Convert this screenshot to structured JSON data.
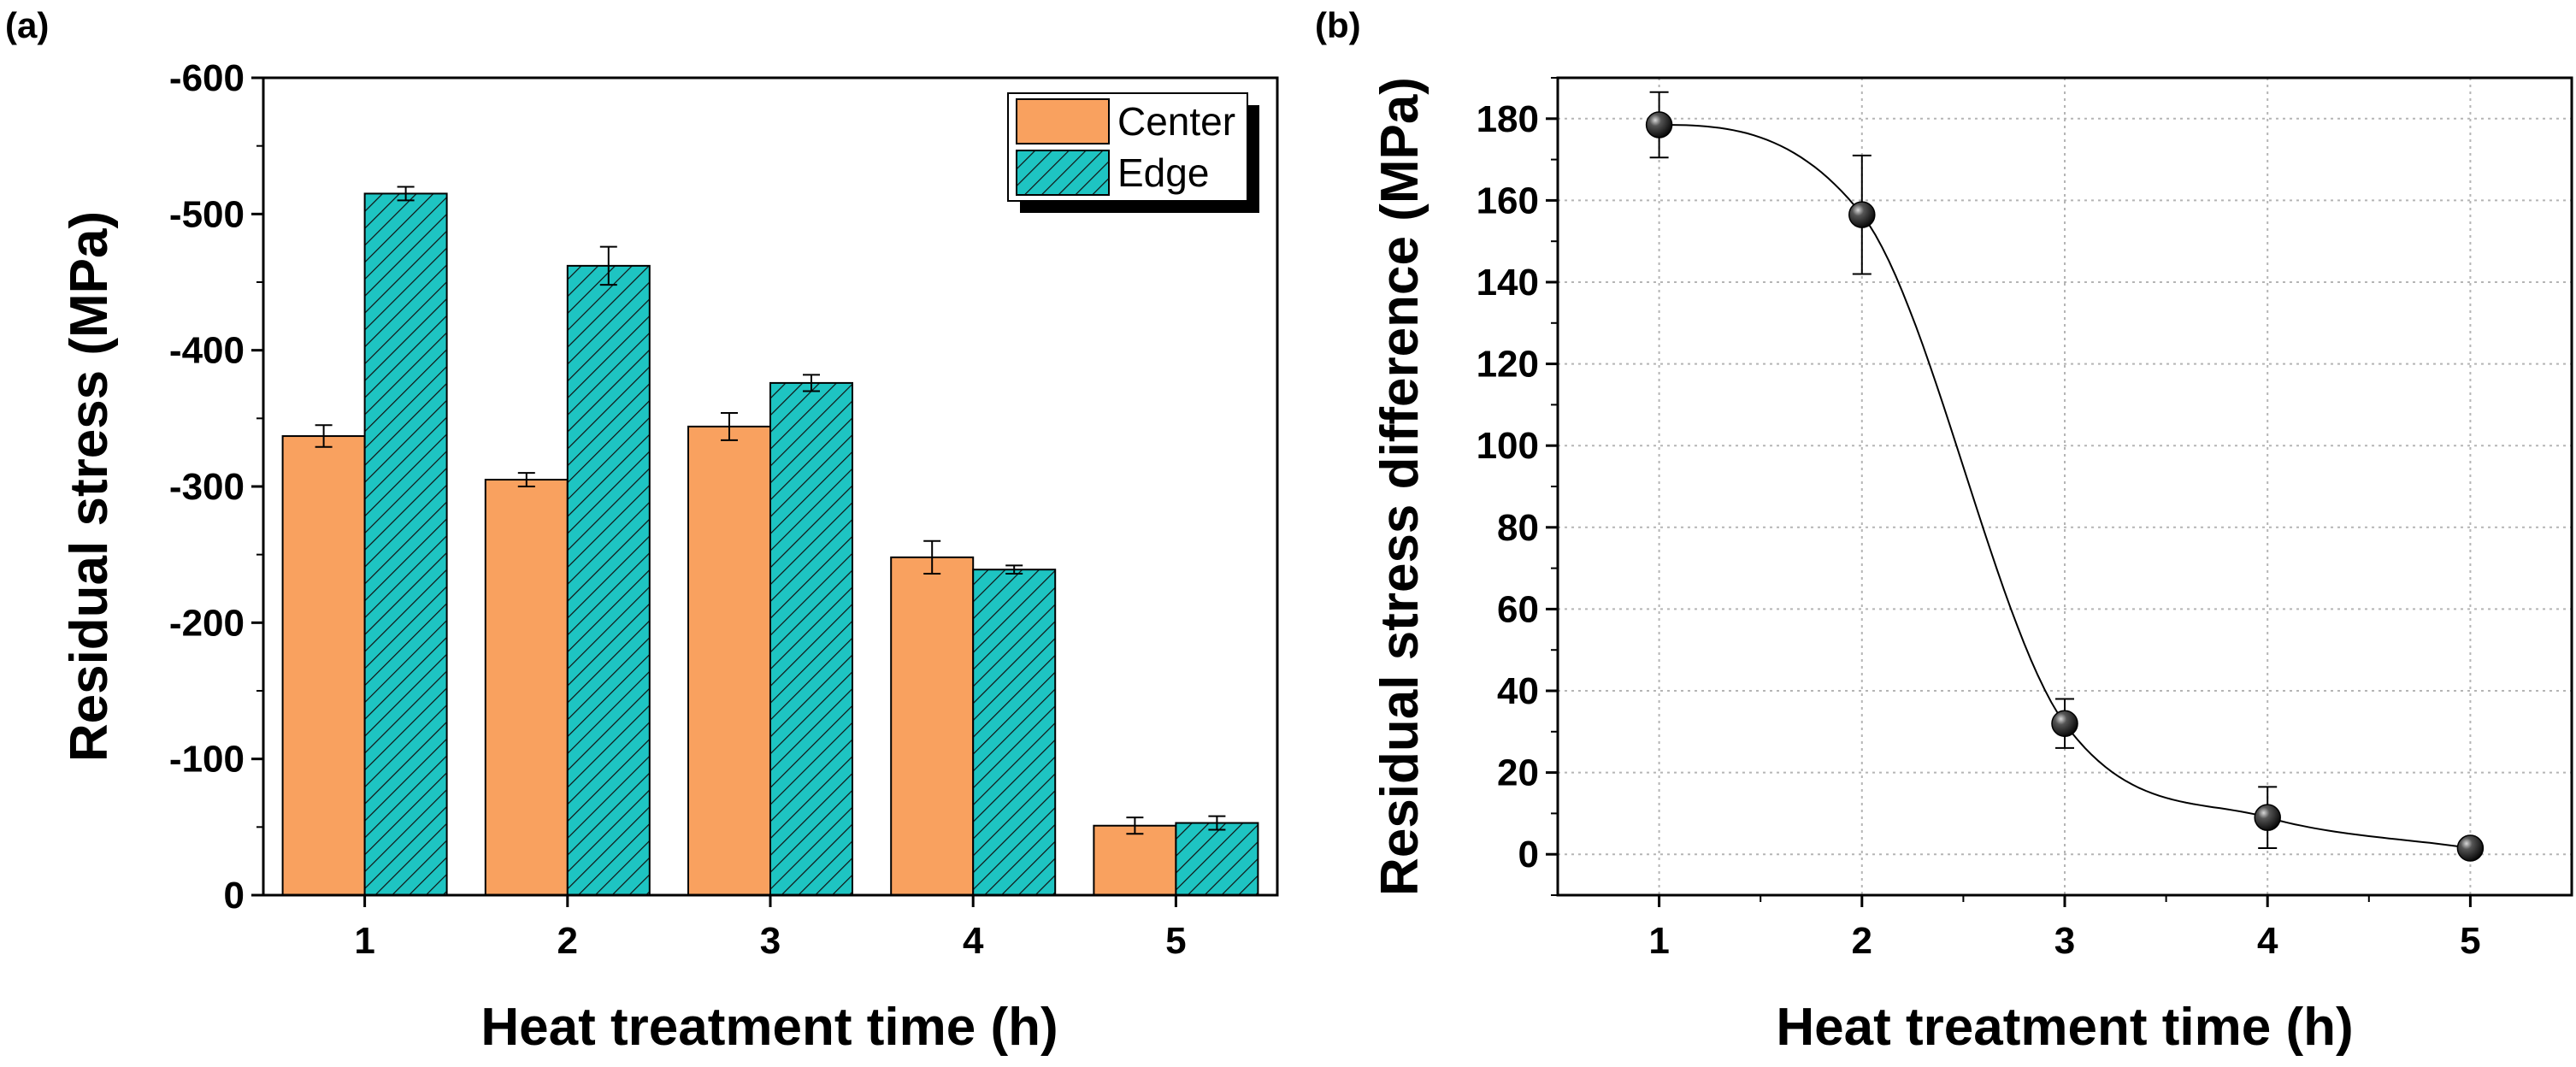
{
  "chart_data": [
    {
      "panel": "(a)",
      "type": "bar",
      "xlabel": "Heat treatment time (h)",
      "ylabel": "Residual stress (MPa)",
      "categories": [
        "1",
        "2",
        "3",
        "4",
        "5"
      ],
      "ylim": [
        0,
        -600
      ],
      "yticks": [
        0,
        -100,
        -200,
        -300,
        -400,
        -500,
        -600
      ],
      "ytick_labels": [
        "0",
        "-100",
        "-200",
        "-300",
        "-400",
        "-500",
        "-600"
      ],
      "series": [
        {
          "name": "Center",
          "color": "#F9A15F",
          "hatch": false,
          "values": [
            -337,
            -305,
            -344,
            -248,
            -51
          ],
          "errors": [
            8,
            5,
            10,
            12,
            6
          ]
        },
        {
          "name": "Edge",
          "color": "#1EC4C2",
          "hatch": true,
          "values": [
            -515,
            -462,
            -376,
            -239,
            -53
          ],
          "errors": [
            5,
            14,
            6,
            3,
            5
          ]
        }
      ],
      "legend": "top-right"
    },
    {
      "panel": "(b)",
      "type": "scatter",
      "xlabel": "Heat treatment time (h)",
      "ylabel": "Residual stress difference (MPa)",
      "x": [
        1,
        2,
        3,
        4,
        5
      ],
      "xtick_labels": [
        "1",
        "2",
        "3",
        "4",
        "5"
      ],
      "xlim": [
        0.5,
        5.5
      ],
      "ylim": [
        -10,
        190
      ],
      "yticks": [
        0,
        20,
        40,
        60,
        80,
        100,
        120,
        140,
        160,
        180
      ],
      "ytick_labels": [
        "0",
        "20",
        "40",
        "60",
        "80",
        "100",
        "120",
        "140",
        "160",
        "180"
      ],
      "series": [
        {
          "name": "Residual stress difference",
          "values": [
            178.5,
            156.5,
            32,
            9,
            1.5
          ],
          "errors": [
            8,
            14.5,
            6,
            7.5,
            2
          ]
        }
      ],
      "fit_curve": true,
      "grid": true
    }
  ]
}
